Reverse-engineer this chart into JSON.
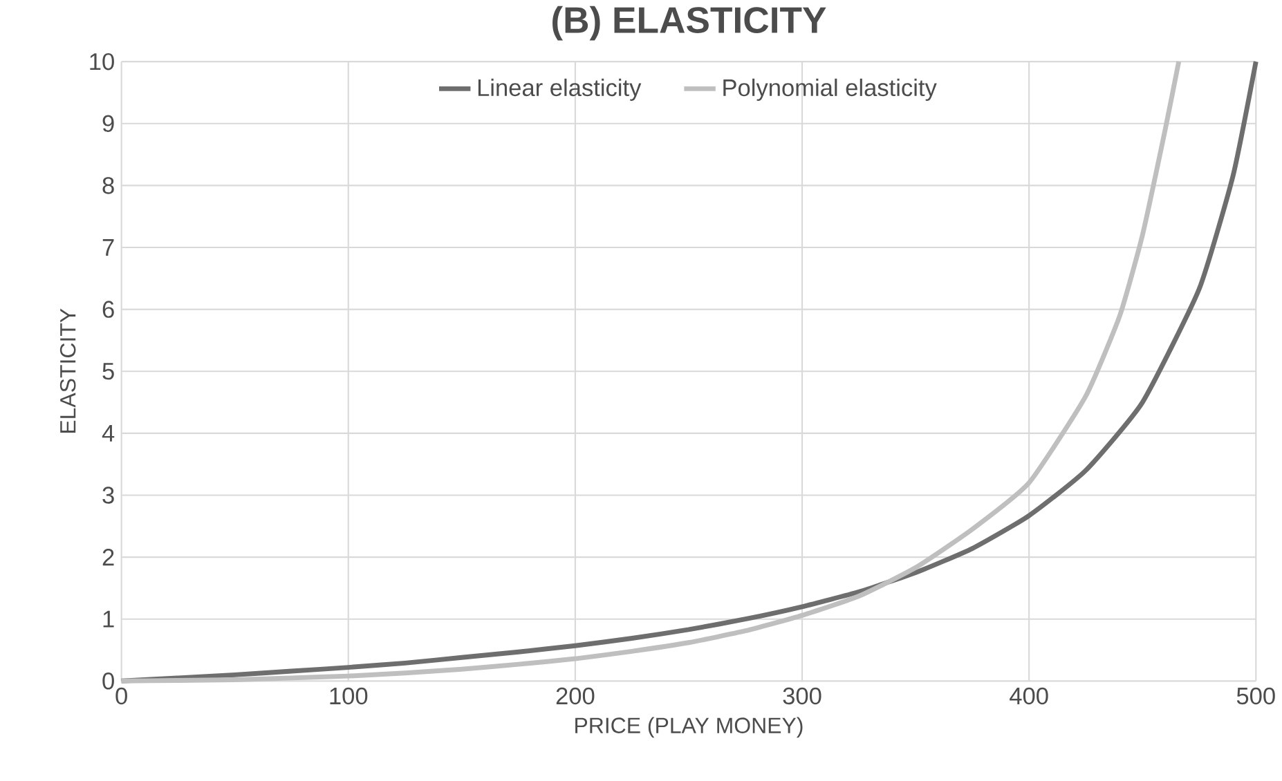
{
  "chart_data": {
    "type": "line",
    "title": "(B) ELASTICITY",
    "xlabel": "PRICE (PLAY MONEY)",
    "ylabel": "ELASTICITY",
    "xlim": [
      0,
      500
    ],
    "ylim": [
      0,
      10
    ],
    "xticks": [
      0,
      100,
      200,
      300,
      400,
      500
    ],
    "yticks": [
      0,
      1,
      2,
      3,
      4,
      5,
      6,
      7,
      8,
      9,
      10
    ],
    "grid": true,
    "legend": "top",
    "marker": "none",
    "line_style": "solid",
    "series": [
      {
        "name": "Linear elasticity",
        "color": "#6e6e6e",
        "x": [
          0,
          25,
          50,
          75,
          100,
          125,
          150,
          175,
          200,
          225,
          250,
          275,
          300,
          325,
          350,
          375,
          400,
          425,
          450,
          475,
          490,
          500
        ],
        "values": [
          0,
          0.05,
          0.1,
          0.16,
          0.22,
          0.29,
          0.38,
          0.47,
          0.57,
          0.69,
          0.83,
          1.0,
          1.2,
          1.44,
          1.75,
          2.14,
          2.67,
          3.4,
          4.5,
          6.33,
          8.17,
          10
        ]
      },
      {
        "name": "Polynomial elasticity",
        "color": "#bfbfbf",
        "x": [
          0,
          25,
          50,
          75,
          100,
          125,
          150,
          175,
          200,
          225,
          250,
          275,
          300,
          325,
          350,
          375,
          400,
          425,
          440,
          450,
          460,
          466
        ],
        "values": [
          0,
          0.01,
          0.02,
          0.05,
          0.08,
          0.13,
          0.19,
          0.27,
          0.36,
          0.48,
          0.62,
          0.81,
          1.06,
          1.37,
          1.83,
          2.45,
          3.2,
          4.6,
          5.9,
          7.2,
          8.9,
          10
        ]
      }
    ]
  }
}
